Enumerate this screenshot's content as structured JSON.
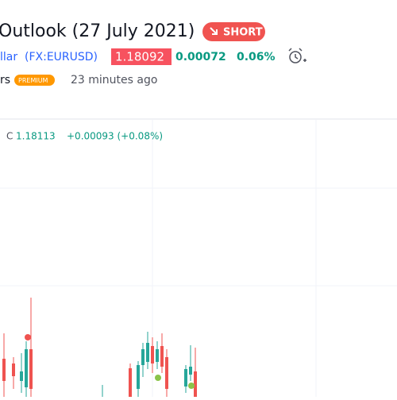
{
  "header": {
    "title": "Outlook (27 July 2021)",
    "signal": "SHORT"
  },
  "symbol": {
    "name": "llar",
    "ticker": "(FX:EURUSD)",
    "price": "1.18092",
    "change": "0.00072",
    "change_pct": "0.06%"
  },
  "author": {
    "name": "rs",
    "badge": "PREMIUM",
    "time": "23 minutes ago"
  },
  "legend": {
    "label": "C",
    "close": "1.18113",
    "change": "+0.00093 (+0.08%)"
  }
}
